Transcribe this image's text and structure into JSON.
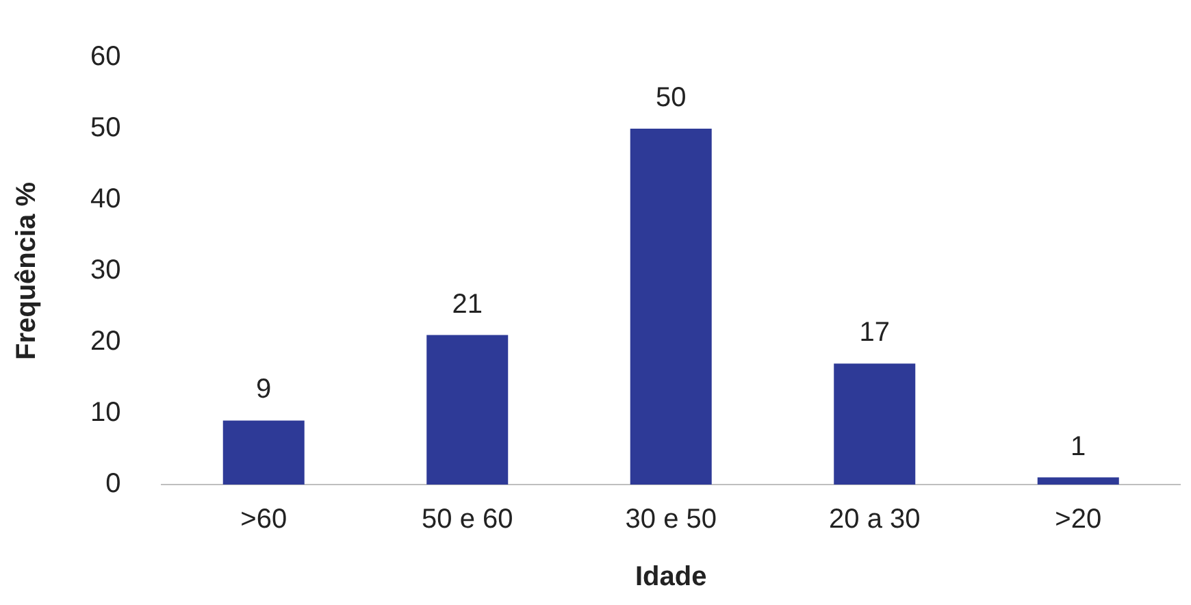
{
  "chart_data": {
    "type": "bar",
    "xlabel": "Idade",
    "ylabel": "Frequência %",
    "categories": [
      ">60",
      "50 e 60",
      "30 e 50",
      "20 a 30",
      ">20"
    ],
    "values": [
      9,
      21,
      50,
      17,
      1
    ],
    "color": "#2e3a97",
    "ylim": [
      0,
      60
    ],
    "yticks": [
      0,
      10,
      20,
      30,
      40,
      50,
      60
    ],
    "grid": false,
    "legend": false,
    "data_labels": true
  }
}
